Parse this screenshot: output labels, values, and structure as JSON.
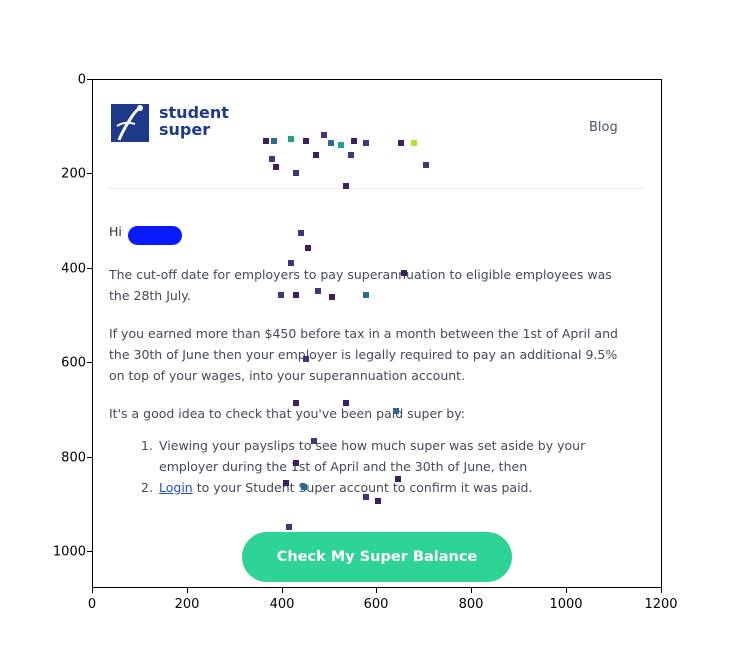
{
  "email": {
    "brand": {
      "line1": "student",
      "line2": "super"
    },
    "nav": {
      "blog": "Blog"
    },
    "greeting": "Hi",
    "paragraph1": "The cut-off date for employers to pay superannuation to eligible employees was the 28th July.",
    "paragraph2": "If you earned more than $450 before tax in a month between the 1st of April and the 30th of June then your employer is legally required to pay an additional 9.5% on top of your wages, into your superannuation account.",
    "paragraph3": "It's a good idea to check that you've been paid super by:",
    "steps": [
      {
        "num": "1.",
        "text": "Viewing your payslips to see how much super was set aside by your employer during the 1st of April and the 30th of June, then"
      },
      {
        "num": "2.",
        "link": "Login",
        "text": " to your Student Super account to confirm it was paid."
      }
    ],
    "cta": "Check My Super Balance"
  },
  "axes": {
    "x_ticks": [
      "0",
      "200",
      "400",
      "600",
      "800",
      "1000",
      "1200"
    ],
    "y_ticks": [
      "0",
      "200",
      "400",
      "600",
      "800",
      "1000"
    ]
  },
  "colors": {
    "brand": "#1e3a8a",
    "cta": "#2dd496",
    "link": "#1d4ed8",
    "redaction": "#0a1aff"
  }
}
